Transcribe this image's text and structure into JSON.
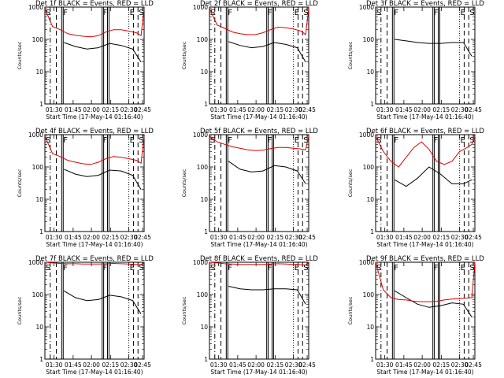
{
  "figure": {
    "ylabel": "Counts/sec",
    "xlabel": "Start Time (17-May-14 01:16:40)",
    "event_color": "#000000",
    "lld_color": "#e00000"
  },
  "chart_data": [
    {
      "type": "line",
      "title": "Det 1f BLACK = Events, RED = LLD",
      "ylabel": "Counts/sec",
      "xlabel": "Start Time (17-May-14 01:16:40)",
      "yscale": "log",
      "ylim": [
        1,
        1000
      ],
      "yticks": [
        "1",
        "10",
        "100",
        "1000"
      ],
      "xticks": [
        "01:30",
        "01:45",
        "02:00",
        "02:15",
        "02:30",
        "02:45"
      ],
      "markers": [
        "S",
        "F",
        "F",
        "E",
        "S"
      ],
      "series": [
        {
          "name": "Events",
          "color": "#000000",
          "x": [
            25,
            40,
            55,
            70,
            85,
            100,
            115,
            126
          ],
          "y": [
            80,
            60,
            50,
            55,
            75,
            65,
            50,
            20
          ]
        },
        {
          "name": "LLD",
          "color": "#e00000",
          "x": [
            0,
            10,
            20,
            30,
            40,
            50,
            60,
            70,
            80,
            90,
            100,
            110,
            120,
            126,
            130
          ],
          "y": [
            900,
            250,
            200,
            150,
            135,
            125,
            120,
            130,
            170,
            200,
            200,
            180,
            160,
            130,
            900
          ]
        }
      ]
    },
    {
      "type": "line",
      "title": "Det 2f BLACK = Events, RED = LLD",
      "ylabel": "Counts/sec",
      "xlabel": "Start Time (17-May-14 01:16:40)",
      "yscale": "log",
      "ylim": [
        1,
        1000
      ],
      "yticks": [
        "1",
        "10",
        "100",
        "1000"
      ],
      "xticks": [
        "01:30",
        "01:45",
        "02:00",
        "02:15",
        "02:30",
        "02:45"
      ],
      "markers": [
        "S",
        "F",
        "F",
        "E",
        "S"
      ],
      "series": [
        {
          "name": "Events",
          "color": "#000000",
          "x": [
            25,
            40,
            55,
            70,
            85,
            100,
            115,
            126
          ],
          "y": [
            85,
            65,
            55,
            60,
            80,
            70,
            55,
            20
          ]
        },
        {
          "name": "LLD",
          "color": "#e00000",
          "x": [
            0,
            10,
            20,
            30,
            40,
            50,
            60,
            70,
            80,
            90,
            100,
            110,
            120,
            126,
            130
          ],
          "y": [
            900,
            280,
            220,
            170,
            150,
            140,
            140,
            160,
            200,
            240,
            230,
            210,
            180,
            140,
            900
          ]
        }
      ]
    },
    {
      "type": "line",
      "title": "Det 3f BLACK = Events, RED = LLD",
      "ylabel": "Counts/sec",
      "xlabel": "Start Time (17-May-14 01:16:40)",
      "yscale": "log",
      "ylim": [
        1,
        1000
      ],
      "yticks": [
        "1",
        "10",
        "100",
        "1000"
      ],
      "xticks": [
        "01:30",
        "01:45",
        "02:00",
        "02:15",
        "02:30",
        "02:45"
      ],
      "markers": [
        "S",
        "F",
        "F",
        "E",
        "S"
      ],
      "series": [
        {
          "name": "Events",
          "color": "#000000",
          "x": [
            25,
            40,
            55,
            70,
            85,
            100,
            115,
            126
          ],
          "y": [
            100,
            90,
            80,
            75,
            75,
            80,
            80,
            30
          ]
        }
      ]
    },
    {
      "type": "line",
      "title": "Det 4f BLACK = Events, RED = LLD",
      "ylabel": "Counts/sec",
      "xlabel": "Start Time (17-May-14 01:16:40)",
      "yscale": "log",
      "ylim": [
        1,
        1000
      ],
      "yticks": [
        "1",
        "10",
        "100",
        "1000"
      ],
      "xticks": [
        "01:30",
        "01:45",
        "02:00",
        "02:15",
        "02:30",
        "02:45"
      ],
      "markers": [
        "S",
        "F",
        "F",
        "E",
        "S"
      ],
      "series": [
        {
          "name": "Events",
          "color": "#000000",
          "x": [
            25,
            40,
            55,
            70,
            85,
            100,
            115,
            126
          ],
          "y": [
            85,
            60,
            50,
            55,
            80,
            75,
            55,
            20
          ]
        },
        {
          "name": "LLD",
          "color": "#e00000",
          "x": [
            0,
            10,
            20,
            30,
            40,
            50,
            60,
            70,
            80,
            90,
            100,
            110,
            120,
            126,
            130
          ],
          "y": [
            900,
            260,
            210,
            160,
            140,
            125,
            120,
            140,
            180,
            210,
            200,
            180,
            160,
            130,
            900
          ]
        }
      ]
    },
    {
      "type": "line",
      "title": "Det 5f BLACK = Events, RED = LLD",
      "ylabel": "Counts/sec",
      "xlabel": "Start Time (17-May-14 01:16:40)",
      "yscale": "log",
      "ylim": [
        1,
        1000
      ],
      "yticks": [
        "1",
        "10",
        "100",
        "1000"
      ],
      "xticks": [
        "01:30",
        "01:45",
        "02:00",
        "02:15",
        "02:30",
        "02:45"
      ],
      "markers": [
        "S",
        "F",
        "F",
        "E",
        "S"
      ],
      "series": [
        {
          "name": "Events",
          "color": "#000000",
          "x": [
            25,
            40,
            55,
            70,
            85,
            100,
            115,
            126
          ],
          "y": [
            150,
            85,
            70,
            75,
            110,
            100,
            75,
            30
          ]
        },
        {
          "name": "LLD",
          "color": "#e00000",
          "x": [
            0,
            10,
            20,
            30,
            40,
            50,
            60,
            70,
            80,
            90,
            100,
            110,
            120,
            126,
            130
          ],
          "y": [
            900,
            600,
            500,
            420,
            380,
            340,
            320,
            330,
            370,
            400,
            400,
            380,
            360,
            340,
            900
          ]
        }
      ]
    },
    {
      "type": "line",
      "title": "Det 6f BLACK = Events, RED = LLD",
      "ylabel": "Counts/sec",
      "xlabel": "Start Time (17-May-14 01:16:40)",
      "yscale": "log",
      "ylim": [
        1,
        1000
      ],
      "yticks": [
        "1",
        "10",
        "100",
        "1000"
      ],
      "xticks": [
        "01:30",
        "01:45",
        "02:00",
        "02:15",
        "02:30",
        "02:45"
      ],
      "markers": [
        "S",
        "F",
        "F",
        "E",
        "S"
      ],
      "series": [
        {
          "name": "Events",
          "color": "#000000",
          "x": [
            25,
            40,
            55,
            70,
            85,
            100,
            115,
            126
          ],
          "y": [
            40,
            25,
            45,
            100,
            60,
            30,
            30,
            40
          ]
        },
        {
          "name": "LLD",
          "color": "#e00000",
          "x": [
            0,
            10,
            20,
            30,
            40,
            50,
            60,
            70,
            80,
            90,
            100,
            110,
            120,
            126,
            130
          ],
          "y": [
            900,
            300,
            150,
            100,
            200,
            400,
            600,
            350,
            150,
            120,
            150,
            300,
            400,
            500,
            900
          ]
        }
      ]
    },
    {
      "type": "line",
      "title": "Det 7f BLACK = Events, RED = LLD",
      "ylabel": "Counts/sec",
      "xlabel": "Start Time (17-May-14 01:16:40)",
      "yscale": "log",
      "ylim": [
        1,
        1000
      ],
      "yticks": [
        "1",
        "10",
        "100",
        "1000"
      ],
      "xticks": [
        "01:30",
        "01:45",
        "02:00",
        "02:15",
        "02:30",
        "02:45"
      ],
      "markers": [
        "S",
        "F",
        "F",
        "E",
        "S"
      ],
      "series": [
        {
          "name": "Events",
          "color": "#000000",
          "x": [
            25,
            40,
            55,
            70,
            85,
            100,
            115,
            126
          ],
          "y": [
            130,
            80,
            65,
            70,
            95,
            85,
            65,
            25
          ]
        },
        {
          "name": "LLD",
          "color": "#e00000",
          "x": [
            0,
            10,
            20,
            30,
            40,
            50,
            60,
            70,
            80,
            90,
            100,
            110,
            120,
            126,
            130
          ],
          "y": [
            1000,
            950,
            920,
            900,
            900,
            880,
            880,
            880,
            900,
            920,
            900,
            880,
            860,
            840,
            1000
          ]
        }
      ]
    },
    {
      "type": "line",
      "title": "Det 8f BLACK = Events, RED = LLD",
      "ylabel": "Counts/sec",
      "xlabel": "Start Time (17-May-14 01:16:40)",
      "yscale": "log",
      "ylim": [
        1,
        1000
      ],
      "yticks": [
        "1",
        "10",
        "100",
        "1000"
      ],
      "xticks": [
        "01:30",
        "01:45",
        "02:00",
        "02:15",
        "02:30",
        "02:45"
      ],
      "markers": [
        "S",
        "F",
        "F",
        "E",
        "S"
      ],
      "series": [
        {
          "name": "Events",
          "color": "#000000",
          "x": [
            25,
            40,
            55,
            70,
            85,
            100,
            115,
            126
          ],
          "y": [
            180,
            150,
            140,
            140,
            150,
            150,
            140,
            50
          ]
        },
        {
          "name": "LLD",
          "color": "#e00000",
          "x": [
            0,
            10,
            20,
            30,
            40,
            50,
            60,
            70,
            80,
            90,
            100,
            110,
            120,
            126,
            130
          ],
          "y": [
            1000,
            950,
            900,
            880,
            860,
            860,
            860,
            860,
            880,
            900,
            880,
            860,
            840,
            820,
            1000
          ]
        }
      ]
    },
    {
      "type": "line",
      "title": "Det 9f BLACK = Events, RED = LLD",
      "ylabel": "Counts/sec",
      "xlabel": "Start Time (17-May-14 01:16:40)",
      "yscale": "log",
      "ylim": [
        1,
        1000
      ],
      "yticks": [
        "1",
        "10",
        "100",
        "1000"
      ],
      "xticks": [
        "01:30",
        "01:45",
        "02:00",
        "02:15",
        "02:30",
        "02:45"
      ],
      "markers": [
        "S",
        "F",
        "F",
        "E",
        "S"
      ],
      "series": [
        {
          "name": "Events",
          "color": "#000000",
          "x": [
            25,
            40,
            55,
            70,
            85,
            100,
            115,
            126
          ],
          "y": [
            130,
            80,
            50,
            40,
            45,
            55,
            50,
            20
          ]
        },
        {
          "name": "LLD",
          "color": "#e00000",
          "x": [
            0,
            10,
            20,
            30,
            40,
            50,
            60,
            70,
            80,
            90,
            100,
            110,
            120,
            126,
            130
          ],
          "y": [
            1000,
            140,
            80,
            70,
            68,
            62,
            60,
            60,
            62,
            68,
            72,
            75,
            78,
            80,
            1000
          ]
        }
      ]
    }
  ]
}
